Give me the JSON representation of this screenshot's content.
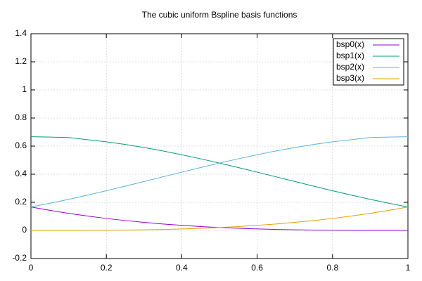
{
  "chart_data": {
    "type": "line",
    "title": "The cubic uniform Bspline basis functions",
    "x": [
      0,
      0.05,
      0.1,
      0.15,
      0.2,
      0.25,
      0.3,
      0.35,
      0.4,
      0.45,
      0.5,
      0.55,
      0.6,
      0.65,
      0.7,
      0.75,
      0.8,
      0.85,
      0.9,
      0.95,
      1
    ],
    "series": [
      {
        "name": "bsp0(x)",
        "color": "#9400d3",
        "values": [
          0.1667,
          0.1429,
          0.1215,
          0.1024,
          0.0853,
          0.0703,
          0.0572,
          0.0458,
          0.036,
          0.0277,
          0.0208,
          0.0152,
          0.0107,
          0.0071,
          0.0045,
          0.0026,
          0.0013,
          0.0006,
          0.0002,
          0.0,
          0
        ]
      },
      {
        "name": "bsp1(x)",
        "color": "#009e73",
        "values": [
          0.6667,
          0.6642,
          0.6612,
          0.6459,
          0.6307,
          0.612,
          0.5902,
          0.5656,
          0.5387,
          0.5097,
          0.4792,
          0.4474,
          0.4147,
          0.3815,
          0.3482,
          0.3151,
          0.2827,
          0.2512,
          0.2212,
          0.1929,
          0.1667
        ]
      },
      {
        "name": "bsp2(x)",
        "color": "#56b4e9",
        "values": [
          0.1667,
          0.1929,
          0.2212,
          0.2512,
          0.2827,
          0.3151,
          0.3482,
          0.3815,
          0.4147,
          0.4474,
          0.4792,
          0.5097,
          0.5387,
          0.5656,
          0.5902,
          0.612,
          0.6307,
          0.6459,
          0.6612,
          0.6642,
          0.6667
        ]
      },
      {
        "name": "bsp3(x)",
        "color": "#e69f00",
        "values": [
          0,
          0.0,
          0.0002,
          0.0006,
          0.0013,
          0.0026,
          0.0045,
          0.0071,
          0.0107,
          0.0152,
          0.0208,
          0.0277,
          0.036,
          0.0458,
          0.0572,
          0.0703,
          0.0853,
          0.1024,
          0.1215,
          0.1429,
          0.1667
        ]
      }
    ],
    "xlim": [
      0,
      1
    ],
    "xticks": [
      0,
      0.2,
      0.4,
      0.6,
      0.8,
      1
    ],
    "ylim": [
      -0.2,
      1.4
    ],
    "yticks": [
      -0.2,
      0,
      0.2,
      0.4,
      0.6,
      0.8,
      1,
      1.2,
      1.4
    ],
    "grid": true,
    "legend": "top-right"
  }
}
